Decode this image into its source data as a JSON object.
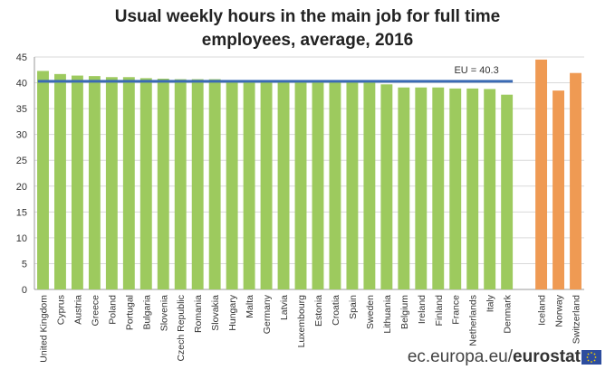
{
  "chart_data": {
    "type": "bar",
    "title_lines": [
      "Usual weekly hours in the main job for full time",
      "employees, average, 2016"
    ],
    "categories": [
      "United Kingdom",
      "Cyprus",
      "Austria",
      "Greece",
      "Poland",
      "Portugal",
      "Bulgaria",
      "Slovenia",
      "Czech Republic",
      "Romania",
      "Slovakia",
      "Hungary",
      "Malta",
      "Germany",
      "Latvia",
      "Luxembourg",
      "Estonia",
      "Croatia",
      "Spain",
      "Sweden",
      "Lithuania",
      "Belgium",
      "Ireland",
      "Finland",
      "France",
      "Netherlands",
      "Italy",
      "Denmark",
      "Iceland",
      "Norway",
      "Switzerland"
    ],
    "values": [
      42.3,
      41.7,
      41.4,
      41.3,
      41.1,
      41.1,
      40.9,
      40.8,
      40.7,
      40.7,
      40.7,
      40.5,
      40.5,
      40.4,
      40.4,
      40.4,
      40.3,
      40.3,
      40.3,
      40.3,
      39.7,
      39.1,
      39.1,
      39.1,
      38.9,
      38.9,
      38.8,
      37.7,
      44.5,
      38.5,
      41.9
    ],
    "groups": [
      "EU",
      "EU",
      "EU",
      "EU",
      "EU",
      "EU",
      "EU",
      "EU",
      "EU",
      "EU",
      "EU",
      "EU",
      "EU",
      "EU",
      "EU",
      "EU",
      "EU",
      "EU",
      "EU",
      "EU",
      "EU",
      "EU",
      "EU",
      "EU",
      "EU",
      "EU",
      "EU",
      "EU",
      "non-EU",
      "non-EU",
      "non-EU"
    ],
    "colors": {
      "EU": "#9dca5e",
      "non-EU": "#ef9a53",
      "reference_line": "#3a6ab4"
    },
    "reference_line": {
      "value": 40.3,
      "label": "EU = 40.3"
    },
    "ylim": [
      0,
      45
    ],
    "yticks": [
      0,
      5,
      10,
      15,
      20,
      25,
      30,
      35,
      40,
      45
    ],
    "grid": true,
    "xlabel": "",
    "ylabel": ""
  },
  "footer": {
    "site": "ec.europa.eu/",
    "brand": "eurostat"
  }
}
